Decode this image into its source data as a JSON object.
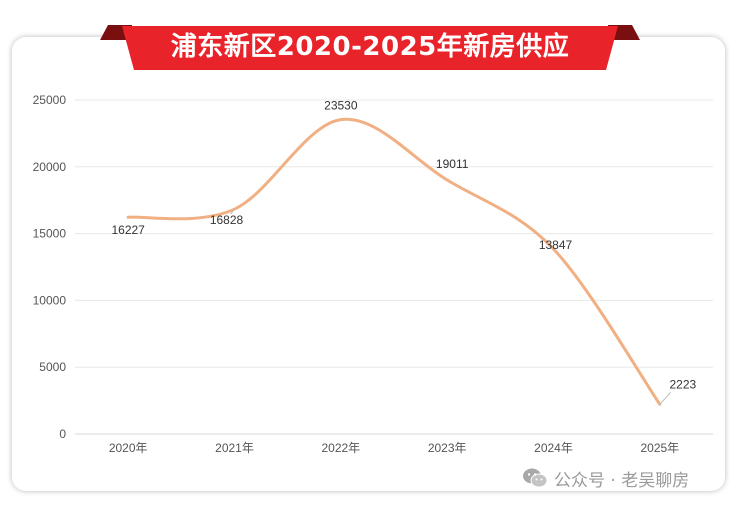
{
  "chart_data": {
    "type": "line",
    "title": "浦东新区2020-2025年新房供应",
    "categories": [
      "2020年",
      "2021年",
      "2022年",
      "2023年",
      "2024年",
      "2025年"
    ],
    "values": [
      16227,
      16828,
      23530,
      19011,
      13847,
      2223
    ],
    "ylim": [
      0,
      25000
    ],
    "yticks": [
      0,
      5000,
      10000,
      15000,
      20000,
      25000
    ],
    "grid": true,
    "line_color": "#f0b083",
    "smooth": true
  },
  "banner": {
    "color": "#e8232a",
    "dark_color": "#7a0f0f"
  },
  "watermark": {
    "text": "公众号 · 老吴聊房",
    "icon": "wechat-icon"
  }
}
